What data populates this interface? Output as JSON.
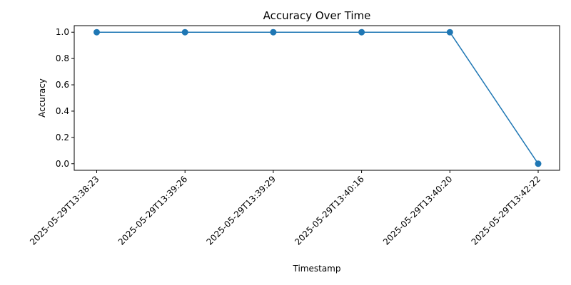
{
  "chart_data": {
    "type": "line",
    "title": "Accuracy Over Time",
    "xlabel": "Timestamp",
    "ylabel": "Accuracy",
    "x": [
      "2025-05-29T13:38:23",
      "2025-05-29T13:39:26",
      "2025-05-29T13:39:29",
      "2025-05-29T13:40:16",
      "2025-05-29T13:40:20",
      "2025-05-29T13:42:22"
    ],
    "series": [
      {
        "values": [
          1.0,
          1.0,
          1.0,
          1.0,
          1.0,
          0.0
        ],
        "color": "#1f77b4",
        "marker": "circle"
      }
    ],
    "ylim": [
      -0.05,
      1.05
    ],
    "yticks": [
      "0.0",
      "0.2",
      "0.4",
      "0.6",
      "0.8",
      "1.0"
    ],
    "grid": false,
    "legend": "none"
  }
}
